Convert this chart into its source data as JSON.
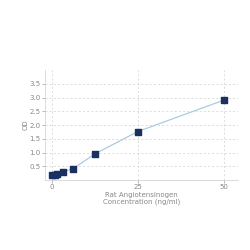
{
  "x": [
    0,
    0.78,
    1.563,
    3.125,
    6.25,
    12.5,
    25,
    50
  ],
  "y": [
    0.168,
    0.191,
    0.224,
    0.291,
    0.418,
    0.949,
    1.762,
    2.903
  ],
  "line_color": "#aacce0",
  "marker_color": "#1a3060",
  "marker_size": 18,
  "xlabel_line1": "Rat Angiotensinogen",
  "xlabel_line2": "Concentration (ng/ml)",
  "ylabel": "OD",
  "xlim": [
    -2,
    54
  ],
  "ylim": [
    0,
    4.0
  ],
  "xticks": [
    0,
    25,
    50
  ],
  "yticks": [
    0.5,
    1.0,
    1.5,
    2.0,
    2.5,
    3.0,
    3.5
  ],
  "grid_color": "#d0d0d0",
  "background_color": "#ffffff",
  "tick_fontsize": 5,
  "label_fontsize": 5
}
